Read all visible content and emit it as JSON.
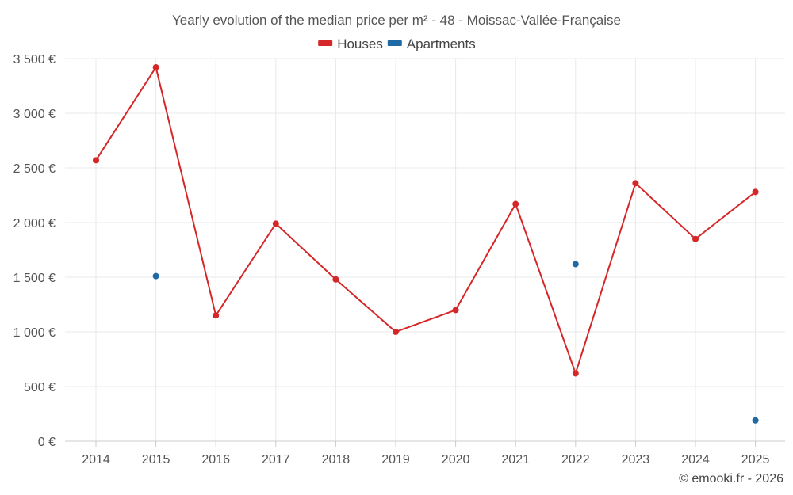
{
  "chart_data": {
    "type": "line",
    "title": "Yearly evolution of the median price per m² - 48 - Moissac-Vallée-Française",
    "categories": [
      "2014",
      "2015",
      "2016",
      "2017",
      "2018",
      "2019",
      "2020",
      "2021",
      "2022",
      "2023",
      "2024",
      "2025"
    ],
    "y_ticks": [
      0,
      500,
      1000,
      1500,
      2000,
      2500,
      3000,
      3500
    ],
    "y_tick_labels": [
      "0 €",
      "500 €",
      "1 000 €",
      "1 500 €",
      "2 000 €",
      "2 500 €",
      "3 000 €",
      "3 500 €"
    ],
    "ylim": [
      0,
      3500
    ],
    "xlabel": "",
    "ylabel": "",
    "grid": true,
    "legend_position": "top-center",
    "series": [
      {
        "name": "Houses",
        "color": "#d62728",
        "style": "line-markers",
        "values": [
          2570,
          3420,
          1150,
          1990,
          1480,
          1000,
          1200,
          2170,
          620,
          2360,
          1850,
          2280
        ]
      },
      {
        "name": "Apartments",
        "color": "#1f6aa5",
        "style": "markers",
        "values": [
          null,
          1510,
          null,
          null,
          null,
          null,
          null,
          null,
          1620,
          null,
          null,
          190
        ]
      }
    ],
    "credit": "© emooki.fr - 2026"
  }
}
